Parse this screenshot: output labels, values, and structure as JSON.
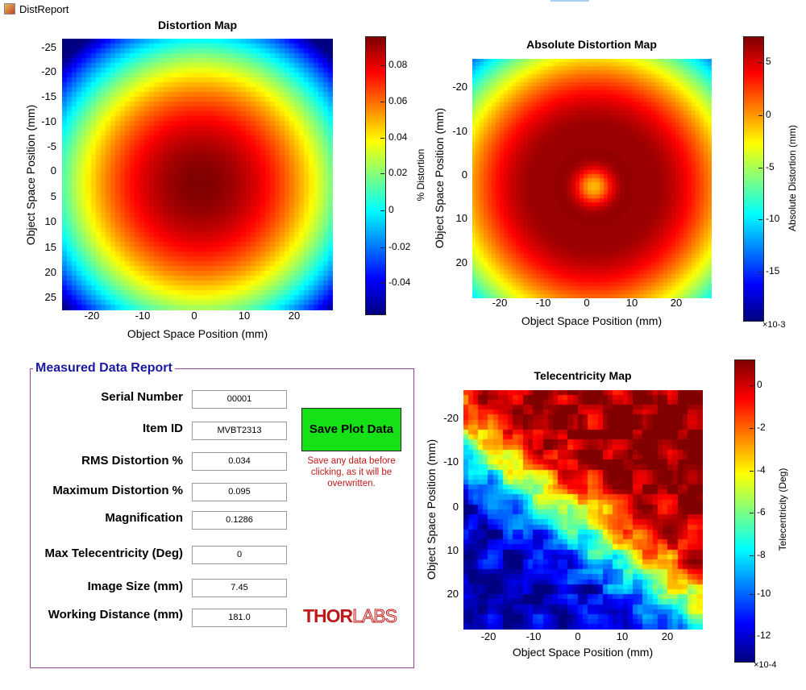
{
  "window": {
    "title": "DistReport"
  },
  "report": {
    "legend": "Measured Data Report",
    "fields": [
      {
        "label": "Serial Number",
        "value": "00001"
      },
      {
        "label": "Item ID",
        "value": "MVBT2313"
      },
      {
        "label": "RMS Distortion %",
        "value": "0.034"
      },
      {
        "label": "Maximum Distortion %",
        "value": "0.095"
      },
      {
        "label": "Magnification",
        "value": "0.1286"
      },
      {
        "label": "Max Telecentricity (Deg)",
        "value": "0"
      },
      {
        "label": "Image Size (mm)",
        "value": "7.45"
      },
      {
        "label": "Working Distance (mm)",
        "value": "181.0"
      }
    ],
    "save_button": "Save Plot Data",
    "save_warning": "Save any data before clicking, as it will be overwritten.",
    "logo": {
      "left": "THOR",
      "right": "LABS"
    }
  },
  "chart_data": [
    {
      "type": "heatmap",
      "title": "Distortion Map",
      "xlabel": "Object Space Position (mm)",
      "ylabel": "Object Space Position (mm)",
      "x_ticks": [
        "-20",
        "-10",
        "0",
        "10",
        "20"
      ],
      "y_ticks": [
        "-25",
        "-20",
        "-15",
        "-10",
        "-5",
        "0",
        "5",
        "10",
        "15",
        "20",
        "25"
      ],
      "colorbar_label": "% Distortion",
      "colorbar_ticks": [
        "0.08",
        "0.06",
        "0.04",
        "0.02",
        "0",
        "-0.02",
        "-0.04"
      ],
      "colorbar_exponent": "",
      "colormap": "jet",
      "pattern": "radial peak (~0.095) near center, decreasing to ~-0.055 at corners",
      "xlim": [
        -27,
        27
      ],
      "ylim": [
        -27,
        28
      ],
      "clim": [
        -0.055,
        0.095
      ]
    },
    {
      "type": "heatmap",
      "title": "Absolute Distortion Map",
      "xlabel": "Object Space Position (mm)",
      "ylabel": "Object Space Position (mm)",
      "x_ticks": [
        "-20",
        "-10",
        "0",
        "10",
        "20"
      ],
      "y_ticks": [
        "-20",
        "-10",
        "0",
        "10",
        "20"
      ],
      "colorbar_label": "Absolute Distortion (mm)",
      "colorbar_ticks": [
        "5",
        "0",
        "-5",
        "-10",
        "-15"
      ],
      "colorbar_exponent": "×10-3",
      "colormap": "jet",
      "pattern": "ring of maximum around radius ~12 mm, lower at center and corners",
      "xlim": [
        -27,
        28
      ],
      "ylim": [
        -28,
        28
      ],
      "clim": [
        -0.0195,
        0.0075
      ]
    },
    {
      "type": "heatmap",
      "title": "Telecentricity Map",
      "xlabel": "Object Space Position (mm)",
      "ylabel": "Object Space Position (mm)",
      "x_ticks": [
        "-20",
        "-10",
        "0",
        "10",
        "20"
      ],
      "y_ticks": [
        "-20",
        "-10",
        "0",
        "10",
        "20"
      ],
      "colorbar_label": "Telecentricity (Deg)",
      "colorbar_ticks": [
        "0",
        "-2",
        "-4",
        "-6",
        "-8",
        "-10",
        "-12"
      ],
      "colorbar_exponent": "×10-4",
      "colormap": "jet",
      "pattern": "high (~0 to 1) upper-right region and top-left, low (~-13) lower-left region",
      "xlim": [
        -26,
        28
      ],
      "ylim": [
        -26,
        28
      ],
      "clim": [
        -0.00135,
        0.0001
      ]
    }
  ]
}
